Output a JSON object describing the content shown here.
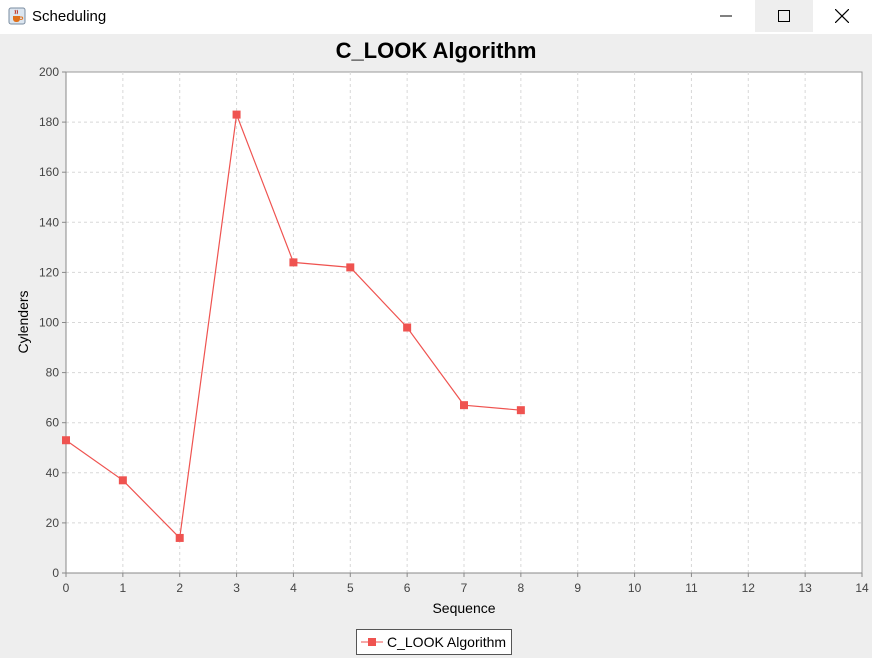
{
  "window": {
    "title": "Scheduling",
    "app_icon": "java-cup-icon",
    "controls": [
      "minimize-icon",
      "maximize-icon",
      "close-icon"
    ]
  },
  "chart_data": {
    "type": "line",
    "title": "C_LOOK Algorithm",
    "xlabel": "Sequence",
    "ylabel": "Cylenders",
    "xlim": [
      0,
      14
    ],
    "ylim": [
      0,
      200
    ],
    "x_ticks": [
      "0",
      "1",
      "2",
      "3",
      "4",
      "5",
      "6",
      "7",
      "8",
      "9",
      "10",
      "11",
      "12",
      "13",
      "14"
    ],
    "y_ticks": [
      "0",
      "20",
      "40",
      "60",
      "80",
      "100",
      "120",
      "140",
      "160",
      "180",
      "200"
    ],
    "grid": true,
    "legend_position": "bottom-center",
    "series": [
      {
        "name": "C_LOOK Algorithm",
        "color": "#ef5350",
        "marker": "square",
        "x": [
          0,
          1,
          2,
          3,
          4,
          5,
          6,
          7,
          8
        ],
        "y": [
          53,
          37,
          14,
          183,
          124,
          122,
          98,
          67,
          65
        ]
      }
    ]
  }
}
